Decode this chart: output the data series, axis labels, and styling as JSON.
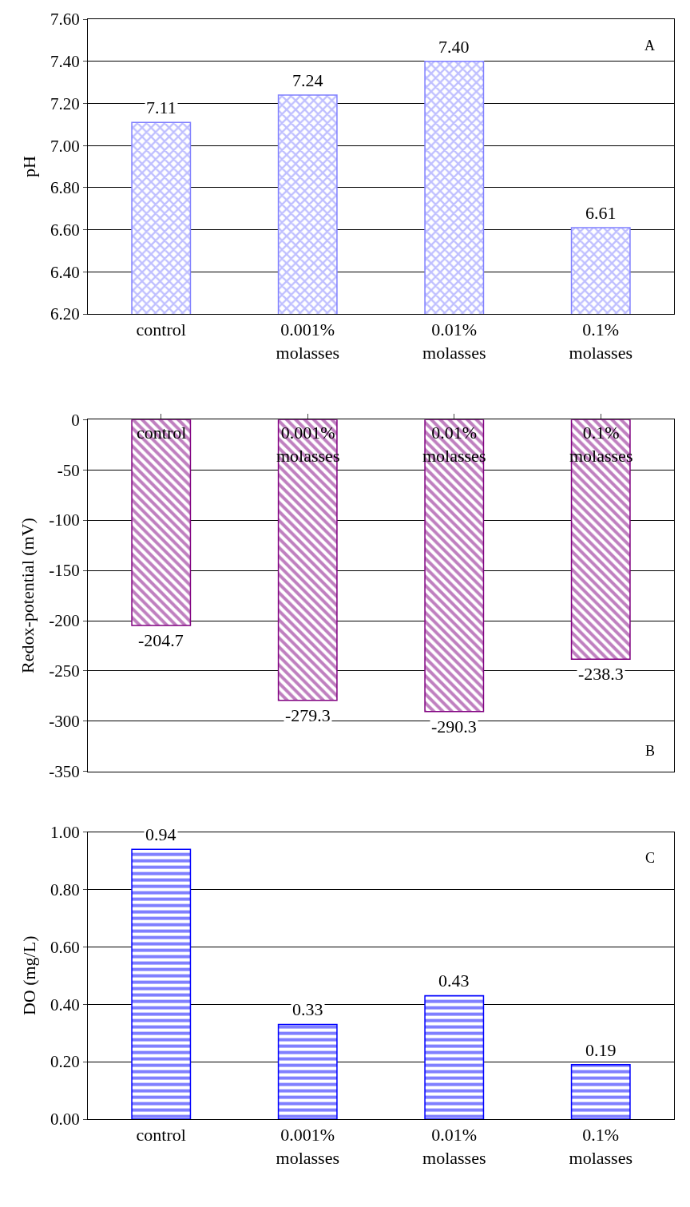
{
  "chart_data": [
    {
      "type": "bar",
      "ylabel": "pH",
      "categories": [
        "control",
        "0.001%\nmolasses",
        "0.01%\nmolasses",
        "0.1%\nmolasses"
      ],
      "values": [
        7.11,
        7.24,
        7.4,
        6.61
      ],
      "value_labels": [
        "7.11",
        "7.24",
        "7.40",
        "6.61"
      ],
      "color": "#8080ff",
      "ylim": [
        6.2,
        7.6
      ],
      "yticks": [
        {
          "value": 6.2,
          "label": "6.20"
        },
        {
          "value": 6.4,
          "label": "6.40"
        },
        {
          "value": 6.6,
          "label": "6.60"
        },
        {
          "value": 6.8,
          "label": "6.80"
        },
        {
          "value": 7.0,
          "label": "7.00"
        },
        {
          "value": 7.2,
          "label": "7.20"
        },
        {
          "value": 7.4,
          "label": "7.40"
        },
        {
          "value": 7.6,
          "label": "7.60"
        }
      ],
      "grid": "y",
      "annotations": [
        "A"
      ]
    },
    {
      "type": "bar",
      "ylabel": "Redox-potential (mV)",
      "categories": [
        "control",
        "0.001%\nmolasses",
        "0.01%\nmolasses",
        "0.1%\nmolasses"
      ],
      "values": [
        -204.7,
        -279.3,
        -290.3,
        -238.3
      ],
      "value_labels": [
        "-204.7",
        "-279.3",
        "-290.3",
        "-238.3"
      ],
      "color": "#800080",
      "ylim": [
        -350,
        0
      ],
      "yticks": [
        -350,
        -300,
        -250,
        -200,
        -150,
        -100,
        -50,
        0
      ],
      "grid": "y",
      "annotations": [
        "B"
      ]
    },
    {
      "type": "bar",
      "ylabel": "DO (mg/L)",
      "categories": [
        "control",
        "0.001%\nmolasses",
        "0.01%\nmolasses",
        "0.1%\nmolasses"
      ],
      "values": [
        0.94,
        0.33,
        0.43,
        0.19
      ],
      "value_labels": [
        "0.94",
        "0.33",
        "0.43",
        "0.19"
      ],
      "color": "#0000ff",
      "ylim": [
        0,
        1
      ],
      "yticks": [
        {
          "value": 0,
          "label": "0.00"
        },
        {
          "value": 0.2,
          "label": "0.20"
        },
        {
          "value": 0.4,
          "label": "0.40"
        },
        {
          "value": 0.6,
          "label": "0.60"
        },
        {
          "value": 0.8,
          "label": "0.80"
        },
        {
          "value": 1.0,
          "label": "1.00"
        }
      ],
      "grid": "y",
      "annotations": [
        "C"
      ]
    }
  ]
}
